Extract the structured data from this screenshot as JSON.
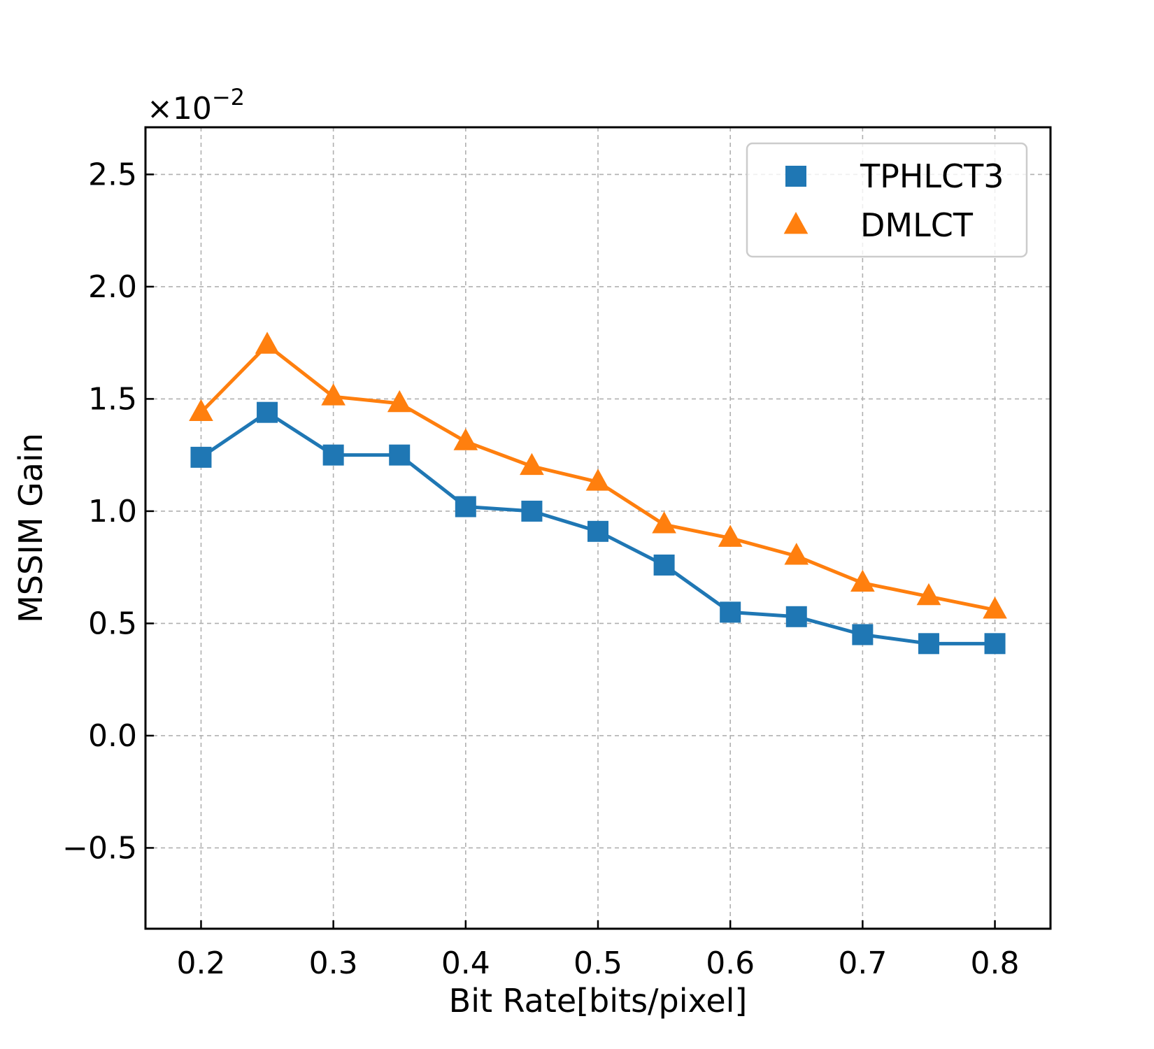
{
  "chart_data": {
    "type": "line",
    "title": "",
    "xlabel": "Bit Rate[bits/pixel]",
    "ylabel": "MSSIM Gain",
    "y_scale_note": "×10⁻²",
    "y_multiplier_base": "×10",
    "y_multiplier_exp": "−2",
    "xlim": [
      0.158,
      0.842
    ],
    "ylim": [
      -0.86,
      2.71
    ],
    "xticks": [
      0.2,
      0.3,
      0.4,
      0.5,
      0.6,
      0.7,
      0.8
    ],
    "xtick_labels": [
      "0.2",
      "0.3",
      "0.4",
      "0.5",
      "0.6",
      "0.7",
      "0.8"
    ],
    "yticks": [
      -0.5,
      0.0,
      0.5,
      1.0,
      1.5,
      2.0,
      2.5
    ],
    "ytick_labels": [
      "−0.5",
      "0.0",
      "0.5",
      "1.0",
      "1.5",
      "2.0",
      "2.5"
    ],
    "grid": true,
    "legend_position": "top-right",
    "x": [
      0.2,
      0.25,
      0.3,
      0.35,
      0.4,
      0.45,
      0.5,
      0.55,
      0.6,
      0.65,
      0.7,
      0.75,
      0.8
    ],
    "series": [
      {
        "name": "TPHLCT3",
        "marker": "square",
        "color": "#1f77b4",
        "values": [
          1.24,
          1.44,
          1.25,
          1.25,
          1.02,
          1.0,
          0.91,
          0.76,
          0.55,
          0.53,
          0.45,
          0.41,
          0.41
        ]
      },
      {
        "name": "DMLCT",
        "marker": "triangle",
        "color": "#ff7f0e",
        "values": [
          1.44,
          1.74,
          1.51,
          1.48,
          1.31,
          1.2,
          1.13,
          0.94,
          0.88,
          0.8,
          0.68,
          0.62,
          0.56
        ]
      }
    ]
  }
}
